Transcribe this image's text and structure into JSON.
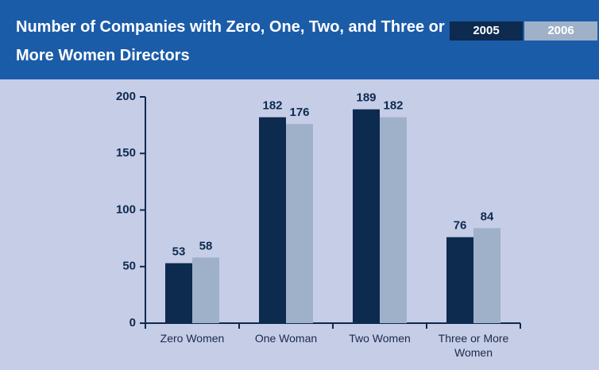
{
  "chart_data": {
    "type": "bar",
    "title": "Number of Companies with Zero, One, Two, and Three or More Women Directors",
    "categories": [
      "Zero Women",
      "One Woman",
      "Two Women",
      "Three or More Women"
    ],
    "series": [
      {
        "name": "2005",
        "color": "#0d2a4f",
        "values": [
          53,
          182,
          189,
          76
        ]
      },
      {
        "name": "2006",
        "color": "#9fb1c9",
        "values": [
          58,
          176,
          182,
          84
        ]
      }
    ],
    "ylim": [
      0,
      200
    ],
    "yticks": [
      0,
      50,
      100,
      150,
      200
    ]
  }
}
